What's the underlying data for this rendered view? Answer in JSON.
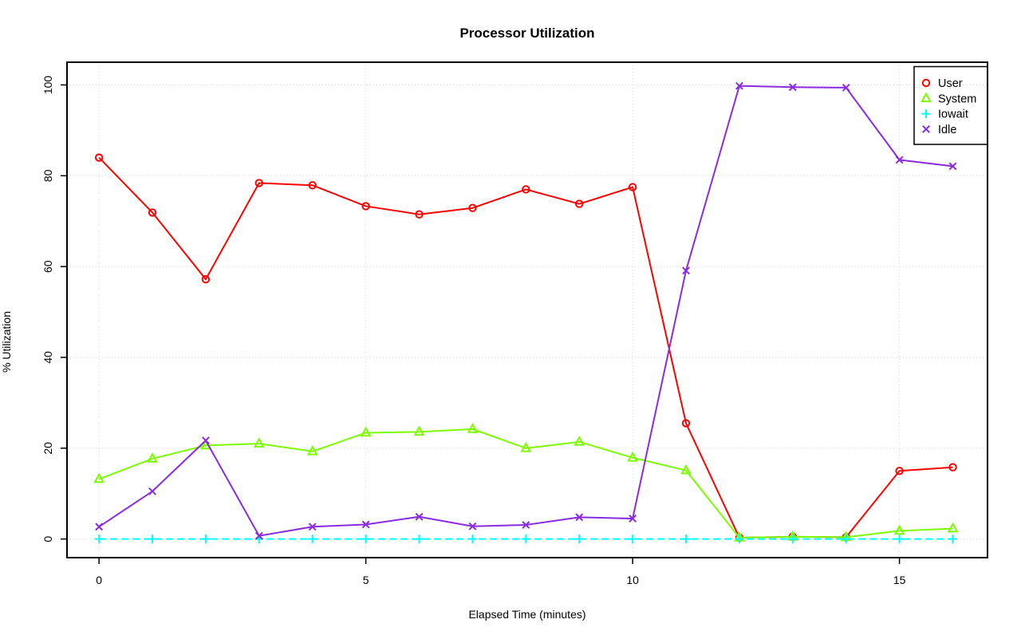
{
  "figure": {
    "title": "Processor Utilization",
    "xlabel": "Elapsed Time (minutes)",
    "ylabel": "% Utilization"
  },
  "chart_data": {
    "type": "line",
    "title": "Processor Utilization",
    "xlabel": "Elapsed Time (minutes)",
    "ylabel": "% Utilization",
    "x": [
      0,
      1,
      2,
      3,
      4,
      5,
      6,
      7,
      8,
      9,
      10,
      11,
      12,
      13,
      14,
      15,
      16
    ],
    "series": [
      {
        "name": "User",
        "marker": "circle",
        "color": "#FF0000",
        "dashed": false,
        "values": [
          84.0,
          71.9,
          57.2,
          78.4,
          77.9,
          73.3,
          71.5,
          72.9,
          77.0,
          73.8,
          77.5,
          25.5,
          0.3,
          0.5,
          0.4,
          15.0,
          15.8
        ]
      },
      {
        "name": "System",
        "marker": "triangle",
        "color": "#7CFC00",
        "dashed": false,
        "values": [
          13.2,
          17.7,
          20.6,
          21.0,
          19.3,
          23.4,
          23.6,
          24.2,
          20.0,
          21.4,
          17.9,
          15.1,
          0.3,
          0.5,
          0.4,
          1.8,
          2.3
        ]
      },
      {
        "name": "Iowait",
        "marker": "plus",
        "color": "#00FFFF",
        "dashed": true,
        "values": [
          0,
          0,
          0,
          0,
          0,
          0,
          0,
          0,
          0,
          0,
          0,
          0,
          0,
          0,
          0,
          0,
          0
        ]
      },
      {
        "name": "Idle",
        "marker": "x",
        "color": "#8A2BE2",
        "dashed": false,
        "values": [
          2.7,
          10.5,
          21.7,
          0.7,
          2.7,
          3.2,
          4.9,
          2.8,
          3.1,
          4.8,
          4.5,
          59.1,
          99.8,
          99.5,
          99.4,
          83.5,
          82.1
        ]
      }
    ],
    "x_ticks": [
      0,
      5,
      10,
      15
    ],
    "y_ticks": [
      0,
      20,
      40,
      60,
      80,
      100
    ],
    "xlim": [
      -0.6,
      16.65
    ],
    "ylim": [
      -4.1,
      105.0
    ],
    "grid": true,
    "grid_style": "dotted",
    "legend_position": "top-right",
    "colors": {
      "grid": "#D6D6D6",
      "axis": "#000000",
      "background": "#FFFFFF"
    }
  }
}
